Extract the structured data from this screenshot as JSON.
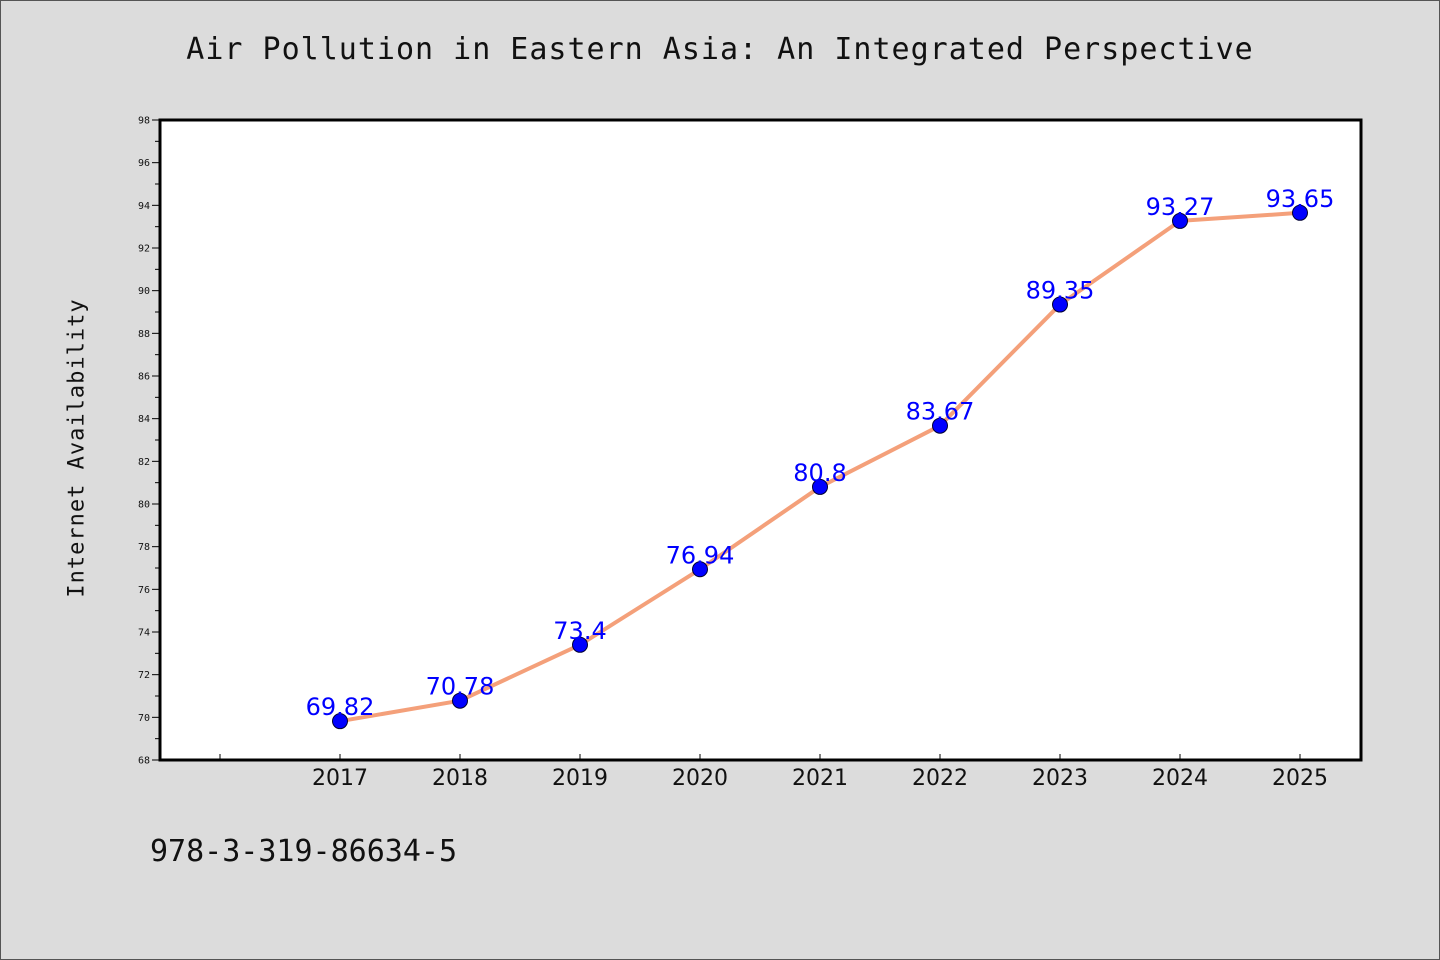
{
  "chart_data": {
    "type": "line",
    "title": "Air Pollution in Eastern Asia: An Integrated Perspective",
    "xlabel": "",
    "ylabel": "Internet Availability",
    "categories": [
      "2017",
      "2018",
      "2019",
      "2020",
      "2021",
      "2022",
      "2023",
      "2024",
      "2025"
    ],
    "series": [
      {
        "values": [
          69.82,
          70.78,
          73.4,
          76.94,
          80.8,
          83.67,
          89.35,
          93.27,
          93.65
        ],
        "line_color": "#f4a07a",
        "marker_color": "#0000ff"
      }
    ],
    "data_labels": [
      "69.82",
      "70.78",
      "73.4",
      "76.94",
      "80.8",
      "83.67",
      "89.35",
      "93.27",
      "93.65"
    ],
    "ylim": [
      68,
      98
    ],
    "yticks": [
      "68",
      "70",
      "72",
      "74",
      "76",
      "78",
      "80",
      "82",
      "84",
      "86",
      "88",
      "90",
      "92",
      "94",
      "96",
      "98"
    ],
    "grid": false,
    "legend": "none"
  },
  "footer": {
    "code": "978-3-319-86634-5"
  },
  "colors": {
    "background": "#dcdcdc",
    "plot_background": "#ffffff",
    "line": "#f4a07a",
    "marker": "#0000ff",
    "data_label": "#0000ff"
  }
}
